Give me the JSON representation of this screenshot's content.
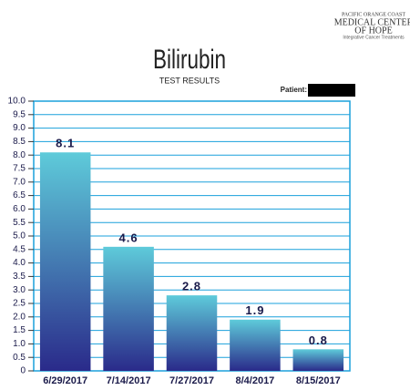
{
  "chart_data": {
    "type": "bar",
    "title": "Bilirubin",
    "subtitle": "TEST RESULTS",
    "patient_label": "Patient:",
    "logo": {
      "line1": "PACIFIC ORANGE COAST",
      "line2": "MEDICAL CENTER",
      "line3": "OF HOPE",
      "line4": "Integrative Cancer Treatments"
    },
    "categories": [
      "6/29/2017",
      "7/14/2017",
      "7/27/2017",
      "8/4/2017",
      "8/15/2017"
    ],
    "values": [
      8.1,
      4.6,
      2.8,
      1.9,
      0.8
    ],
    "gradient": [
      "#5ecbda",
      "#2a2a8a"
    ],
    "grid_color": "#1aa0dc",
    "ylim": [
      0,
      10
    ],
    "yticks": [
      {
        "value": 10,
        "label": "10.0"
      },
      9.5,
      {
        "value": 9,
        "label": "9.0"
      },
      8.5,
      {
        "value": 8,
        "label": "8.0"
      },
      7.5,
      {
        "value": 7,
        "label": "7.0"
      },
      6.5,
      {
        "value": 6,
        "label": "6.0"
      },
      5.5,
      {
        "value": 5,
        "label": "5.0"
      },
      4.5,
      {
        "value": 4,
        "label": "4.0"
      },
      3.5,
      {
        "value": 3,
        "label": "3.0"
      },
      2.5,
      {
        "value": 2,
        "label": "2.0"
      },
      1.5,
      {
        "value": 1,
        "label": "1.0"
      },
      0.5,
      0
    ],
    "grid": true
  }
}
